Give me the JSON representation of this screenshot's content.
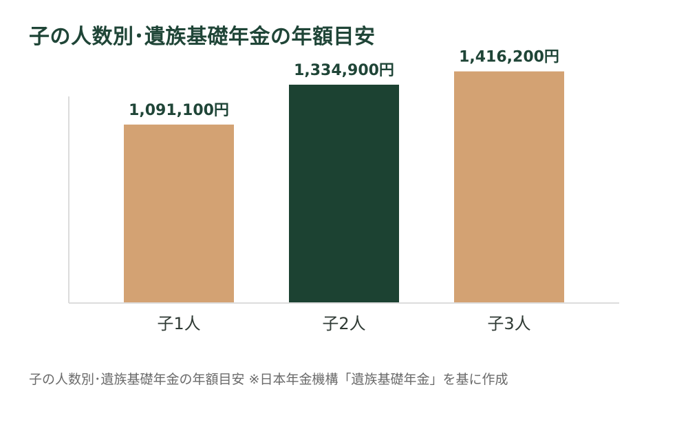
{
  "page": {
    "title": "子の人数別･遺族基礎年金の年額目安",
    "caption": "子の人数別･遺族基礎年金の年額目安 ※日本年金機構「遺族基礎年金」を基に作成"
  },
  "chart_data": {
    "type": "bar",
    "categories": [
      "子1人",
      "子2人",
      "子3人"
    ],
    "values": [
      1091100,
      1334900,
      1416200
    ],
    "value_labels": [
      "1,091,100円",
      "1,334,900円",
      "1,416,200円"
    ],
    "colors": [
      "#d3a273",
      "#1c4232",
      "#d3a273"
    ],
    "ylim": [
      0,
      1600000
    ],
    "grid": false,
    "legend": "none"
  }
}
